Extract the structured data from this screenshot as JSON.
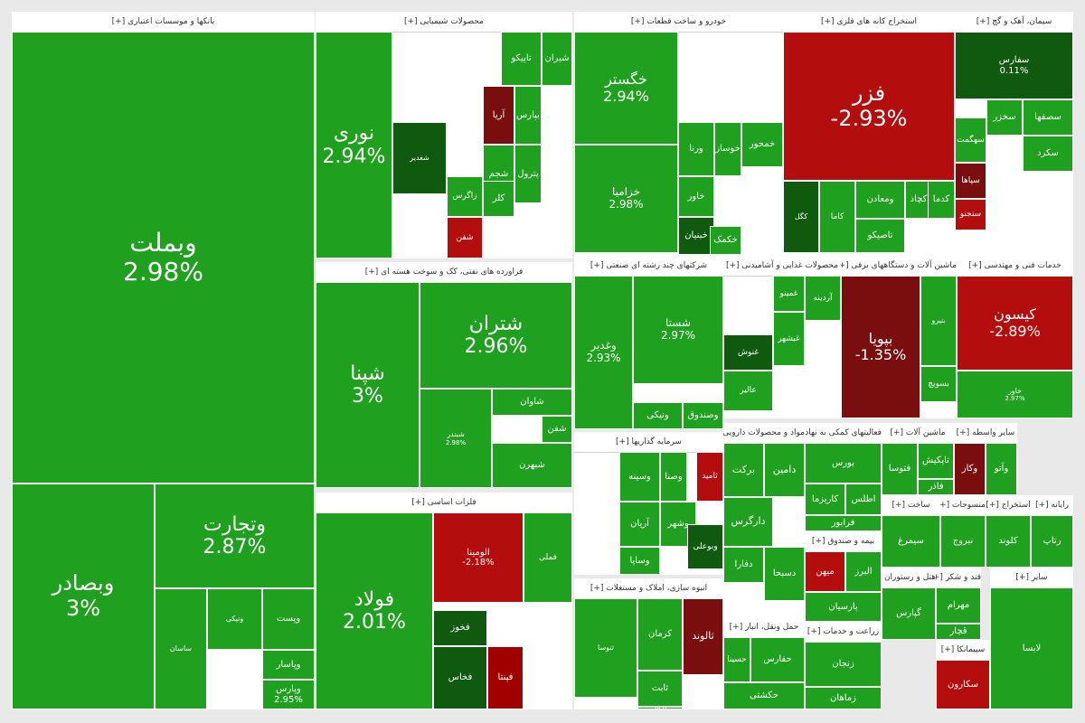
{
  "colors": {
    "g3": "#1fa01f",
    "g2": "#22a822",
    "g1": "#1e8f1e",
    "dg": "#0f5a0f",
    "r1": "#b30d0d",
    "r2": "#a00000",
    "dr": "#7a0d0d"
  },
  "chart_data": {
    "type": "treemap",
    "title": "",
    "sectors": [
      {
        "id": "banks",
        "label": "بانکها و موسسات اعتباری [+]",
        "tiles": [
          {
            "name": "وبملت",
            "pct": "2.98%",
            "c": "g3"
          },
          {
            "name": "وبصادر",
            "pct": "3%",
            "c": "g3"
          },
          {
            "name": "وتجارت",
            "pct": "2.87%",
            "c": "g3"
          },
          {
            "name": "ساسان",
            "pct": "",
            "c": "g3"
          },
          {
            "name": "ونیکی",
            "pct": "",
            "c": "g3"
          },
          {
            "name": "وپست",
            "pct": "",
            "c": "g3"
          },
          {
            "name": "وپاسار",
            "pct": "",
            "c": "g3"
          },
          {
            "name": "وپارس",
            "pct": "2.95%",
            "c": "g3"
          }
        ]
      },
      {
        "id": "chem",
        "label": "محصولات شیمیایی [+]",
        "tiles": [
          {
            "name": "نوری",
            "pct": "2.94%",
            "c": "g3"
          },
          {
            "name": "شیران",
            "pct": "",
            "c": "g3"
          },
          {
            "name": "تاپیکو",
            "pct": "",
            "c": "g3"
          },
          {
            "name": "آریا",
            "pct": "",
            "c": "dr"
          },
          {
            "name": "بپارس",
            "pct": "",
            "c": "g3"
          },
          {
            "name": "پترول",
            "pct": "",
            "c": "g3"
          },
          {
            "name": "شجم",
            "pct": "",
            "c": "g3"
          },
          {
            "name": "شفن",
            "pct": "",
            "c": "r1"
          },
          {
            "name": "زاگرس",
            "pct": "",
            "c": "g3"
          },
          {
            "name": "کلر",
            "pct": "",
            "c": "g3"
          },
          {
            "name": "شغدیر",
            "pct": "",
            "c": "dg"
          }
        ]
      },
      {
        "id": "refinery",
        "label": "فراورده های نفتی، کک و سوخت هسته ای [+]",
        "tiles": [
          {
            "name": "شپنا",
            "pct": "3%",
            "c": "g3"
          },
          {
            "name": "شتران",
            "pct": "2.96%",
            "c": "g3"
          },
          {
            "name": "شبندر",
            "pct": "2.98%",
            "c": "g3"
          },
          {
            "name": "شبهرن",
            "pct": "",
            "c": "g3"
          },
          {
            "name": "شاوان",
            "pct": "",
            "c": "g3"
          },
          {
            "name": "شفن",
            "pct": "",
            "c": "g3"
          }
        ]
      },
      {
        "id": "basemetals",
        "label": "فلزات اساسی [+]",
        "tiles": [
          {
            "name": "فولاد",
            "pct": "2.01%",
            "c": "g3"
          },
          {
            "name": "فملی",
            "pct": "",
            "c": "g3"
          },
          {
            "name": "فخوز",
            "pct": "",
            "c": "dg"
          },
          {
            "name": "الومینا",
            "pct": "-2.18%",
            "c": "r1"
          },
          {
            "name": "فپنتا",
            "pct": "",
            "c": "r2"
          },
          {
            "name": "فخاس",
            "pct": "",
            "c": "dg"
          }
        ]
      },
      {
        "id": "auto",
        "label": "خودرو و ساخت قطعات [+]",
        "tiles": [
          {
            "name": "خگستر",
            "pct": "2.94%",
            "c": "g3"
          },
          {
            "name": "خزامیا",
            "pct": "2.98%",
            "c": "g3"
          },
          {
            "name": "ورنا",
            "pct": "",
            "c": "g3"
          },
          {
            "name": "خوساز",
            "pct": "",
            "c": "g3"
          },
          {
            "name": "خاور",
            "pct": "",
            "c": "g3"
          },
          {
            "name": "خمحور",
            "pct": "",
            "c": "g3"
          },
          {
            "name": "خبنیان",
            "pct": "",
            "c": "dg"
          },
          {
            "name": "خکمک",
            "pct": "",
            "c": "g3"
          }
        ]
      },
      {
        "id": "mining",
        "label": "استخراج کانه های فلزی [+]",
        "tiles": [
          {
            "name": "فزر",
            "pct": "-2.93%",
            "c": "r1"
          },
          {
            "name": "کاما",
            "pct": "",
            "c": "g3"
          },
          {
            "name": "ومعادن",
            "pct": "",
            "c": "g3"
          },
          {
            "name": "کچاد",
            "pct": "",
            "c": "g3"
          },
          {
            "name": "کدما",
            "pct": "",
            "c": "g3"
          },
          {
            "name": "تاصیکو",
            "pct": "",
            "c": "g3"
          },
          {
            "name": "کگل",
            "pct": "",
            "c": "dg"
          }
        ]
      },
      {
        "id": "cement",
        "label": "سیمان، آهک و گچ [+]",
        "tiles": [
          {
            "name": "سفارس",
            "pct": "0.11%",
            "c": "dg"
          },
          {
            "name": "سخزر",
            "pct": "",
            "c": "g3"
          },
          {
            "name": "سهگمت",
            "pct": "",
            "c": "g3"
          },
          {
            "name": "سصفها",
            "pct": "",
            "c": "g3"
          },
          {
            "name": "سپاها",
            "pct": "",
            "c": "dr"
          },
          {
            "name": "سنجنو",
            "pct": "",
            "c": "r1"
          },
          {
            "name": "سکرد",
            "pct": "",
            "c": "g3"
          }
        ]
      },
      {
        "id": "multi",
        "label": "شرکتهای چند رشته ای صنعتی [+]",
        "tiles": [
          {
            "name": "شستا",
            "pct": "2.97%",
            "c": "g3"
          },
          {
            "name": "وغدیر",
            "pct": "2.93%",
            "c": "g3"
          },
          {
            "name": "ونیکی",
            "pct": "",
            "c": "g3"
          },
          {
            "name": "وصندوق",
            "pct": "",
            "c": "g3"
          }
        ]
      },
      {
        "id": "food",
        "label": "محصولات غذایی و آشامیدنی [+]",
        "tiles": [
          {
            "name": "غنوش",
            "pct": "",
            "c": "dg"
          },
          {
            "name": "غبشهر",
            "pct": "",
            "c": "g3"
          },
          {
            "name": "غمینو",
            "pct": "",
            "c": "g3"
          },
          {
            "name": "آردینه",
            "pct": "",
            "c": "g3"
          },
          {
            "name": "عالیر",
            "pct": "",
            "c": "g3"
          }
        ]
      },
      {
        "id": "machinery",
        "label": "ماشین آلات و دستگاههای برقی [+]",
        "tiles": [
          {
            "name": "بپویا",
            "pct": "-1.35%",
            "c": "dr"
          },
          {
            "name": "بسویچ",
            "pct": "",
            "c": "g3"
          },
          {
            "name": "بنیرو",
            "pct": "",
            "c": "g3"
          }
        ]
      },
      {
        "id": "engineering",
        "label": "خدمات فنی و مهندسی [+]",
        "tiles": [
          {
            "name": "کیسون",
            "pct": "-2.89%",
            "c": "r1"
          },
          {
            "name": "خاور",
            "pct": "2.97%",
            "c": "g3"
          }
        ]
      },
      {
        "id": "investment",
        "label": "سرمایه گذاریها [+]",
        "tiles": [
          {
            "name": "وسینه",
            "pct": "",
            "c": "g3"
          },
          {
            "name": "وصنا",
            "pct": "",
            "c": "g3"
          },
          {
            "name": "آریان",
            "pct": "",
            "c": "g3"
          },
          {
            "name": "وشهر",
            "pct": "",
            "c": "g3"
          },
          {
            "name": "وساپا",
            "pct": "",
            "c": "g3"
          },
          {
            "name": "وبوعلی",
            "pct": "",
            "c": "dg"
          },
          {
            "name": "ثامید",
            "pct": "",
            "c": "r1"
          }
        ]
      },
      {
        "id": "realestate",
        "label": "انبوه سازی، املاک و مستغلات [+]",
        "tiles": [
          {
            "name": "ثالوند",
            "pct": "",
            "c": "dr"
          },
          {
            "name": "کرمان",
            "pct": "",
            "c": "g3"
          },
          {
            "name": "ثابت",
            "pct": "",
            "c": "g3"
          },
          {
            "name": "ثنوسا",
            "pct": "",
            "c": "g3"
          },
          {
            "name": "ثرود",
            "pct": "",
            "c": "g3"
          }
        ]
      },
      {
        "id": "products",
        "label": "مواد و محصولات دارویی [+]",
        "tiles": [
          {
            "name": "برکت",
            "pct": "",
            "c": "g3"
          },
          {
            "name": "دامین",
            "pct": "",
            "c": "g3"
          },
          {
            "name": "دارگرس",
            "pct": "",
            "c": "g3"
          },
          {
            "name": "دفارا",
            "pct": "",
            "c": "g3"
          },
          {
            "name": "دسبحا",
            "pct": "",
            "c": "g3"
          }
        ]
      },
      {
        "id": "brokers",
        "label": "فعالیتهای کمکی به نهادهای مالی [+]",
        "tiles": [
          {
            "name": "بورس",
            "pct": "",
            "c": "g3"
          },
          {
            "name": "اطلس",
            "pct": "",
            "c": "g3"
          },
          {
            "name": "فرابور",
            "pct": "",
            "c": "g3"
          },
          {
            "name": "کاریزما",
            "pct": "",
            "c": "g3"
          }
        ]
      },
      {
        "id": "machinery2",
        "label": "ماشین آلات [+]",
        "tiles": [
          {
            "name": "تاپکیش",
            "pct": "",
            "c": "g3"
          },
          {
            "name": "فتوسا",
            "pct": "",
            "c": "g3"
          },
          {
            "name": "فاذر",
            "pct": "",
            "c": "g3"
          }
        ]
      },
      {
        "id": "other1",
        "label": "سایر واسطه [+]",
        "tiles": [
          {
            "name": "وکار",
            "pct": "",
            "c": "dr"
          },
          {
            "name": "وآتو",
            "pct": "",
            "c": "g3"
          }
        ]
      },
      {
        "id": "insurance",
        "label": "بیمه و صندوق [+]",
        "tiles": [
          {
            "name": "میهن",
            "pct": "",
            "c": "r1"
          },
          {
            "name": "البرز",
            "pct": "",
            "c": "g3"
          },
          {
            "name": "پارسیان",
            "pct": "",
            "c": "g3"
          }
        ]
      },
      {
        "id": "transport",
        "label": "حمل ونقل، انبار [+]",
        "tiles": [
          {
            "name": "حفارس",
            "pct": "",
            "c": "g3"
          },
          {
            "name": "حکشتی",
            "pct": "",
            "c": "g3"
          },
          {
            "name": "حسینا",
            "pct": "",
            "c": "g3"
          }
        ]
      },
      {
        "id": "agri",
        "label": "زراعت و خدمات [+]",
        "tiles": [
          {
            "name": "زنجان",
            "pct": "",
            "c": "g3"
          },
          {
            "name": "زماهان",
            "pct": "",
            "c": "g3"
          }
        ]
      },
      {
        "id": "build",
        "label": "ساخت [+]",
        "tiles": [
          {
            "name": "سیمرغ",
            "pct": "",
            "c": "g3"
          }
        ]
      },
      {
        "id": "other2",
        "label": "منسوجات [+]",
        "tiles": [
          {
            "name": "نبروج",
            "pct": "",
            "c": "g3"
          }
        ]
      },
      {
        "id": "other3",
        "label": "استخراج [+]",
        "tiles": [
          {
            "name": "کلوند",
            "pct": "",
            "c": "g3"
          }
        ]
      },
      {
        "id": "other4",
        "label": "رایانه [+]",
        "tiles": [
          {
            "name": "رتاپ",
            "pct": "",
            "c": "g3"
          }
        ]
      },
      {
        "id": "other5",
        "label": "هتل و رستوران [+]",
        "tiles": [
          {
            "name": "گپارس",
            "pct": "",
            "c": "g3"
          }
        ]
      },
      {
        "id": "other6",
        "label": "قند و شکر [+]",
        "tiles": [
          {
            "name": "مهرام",
            "pct": "",
            "c": "g3"
          },
          {
            "name": "قچار",
            "pct": "",
            "c": "g3"
          }
        ]
      },
      {
        "id": "other7",
        "label": "سپیمانکا [+]",
        "tiles": [
          {
            "name": "سکارون",
            "pct": "",
            "c": "r1"
          }
        ]
      },
      {
        "id": "other8",
        "label": "سایر [+]",
        "tiles": [
          {
            "name": "لابسا",
            "pct": "",
            "c": "g3"
          }
        ]
      }
    ]
  }
}
